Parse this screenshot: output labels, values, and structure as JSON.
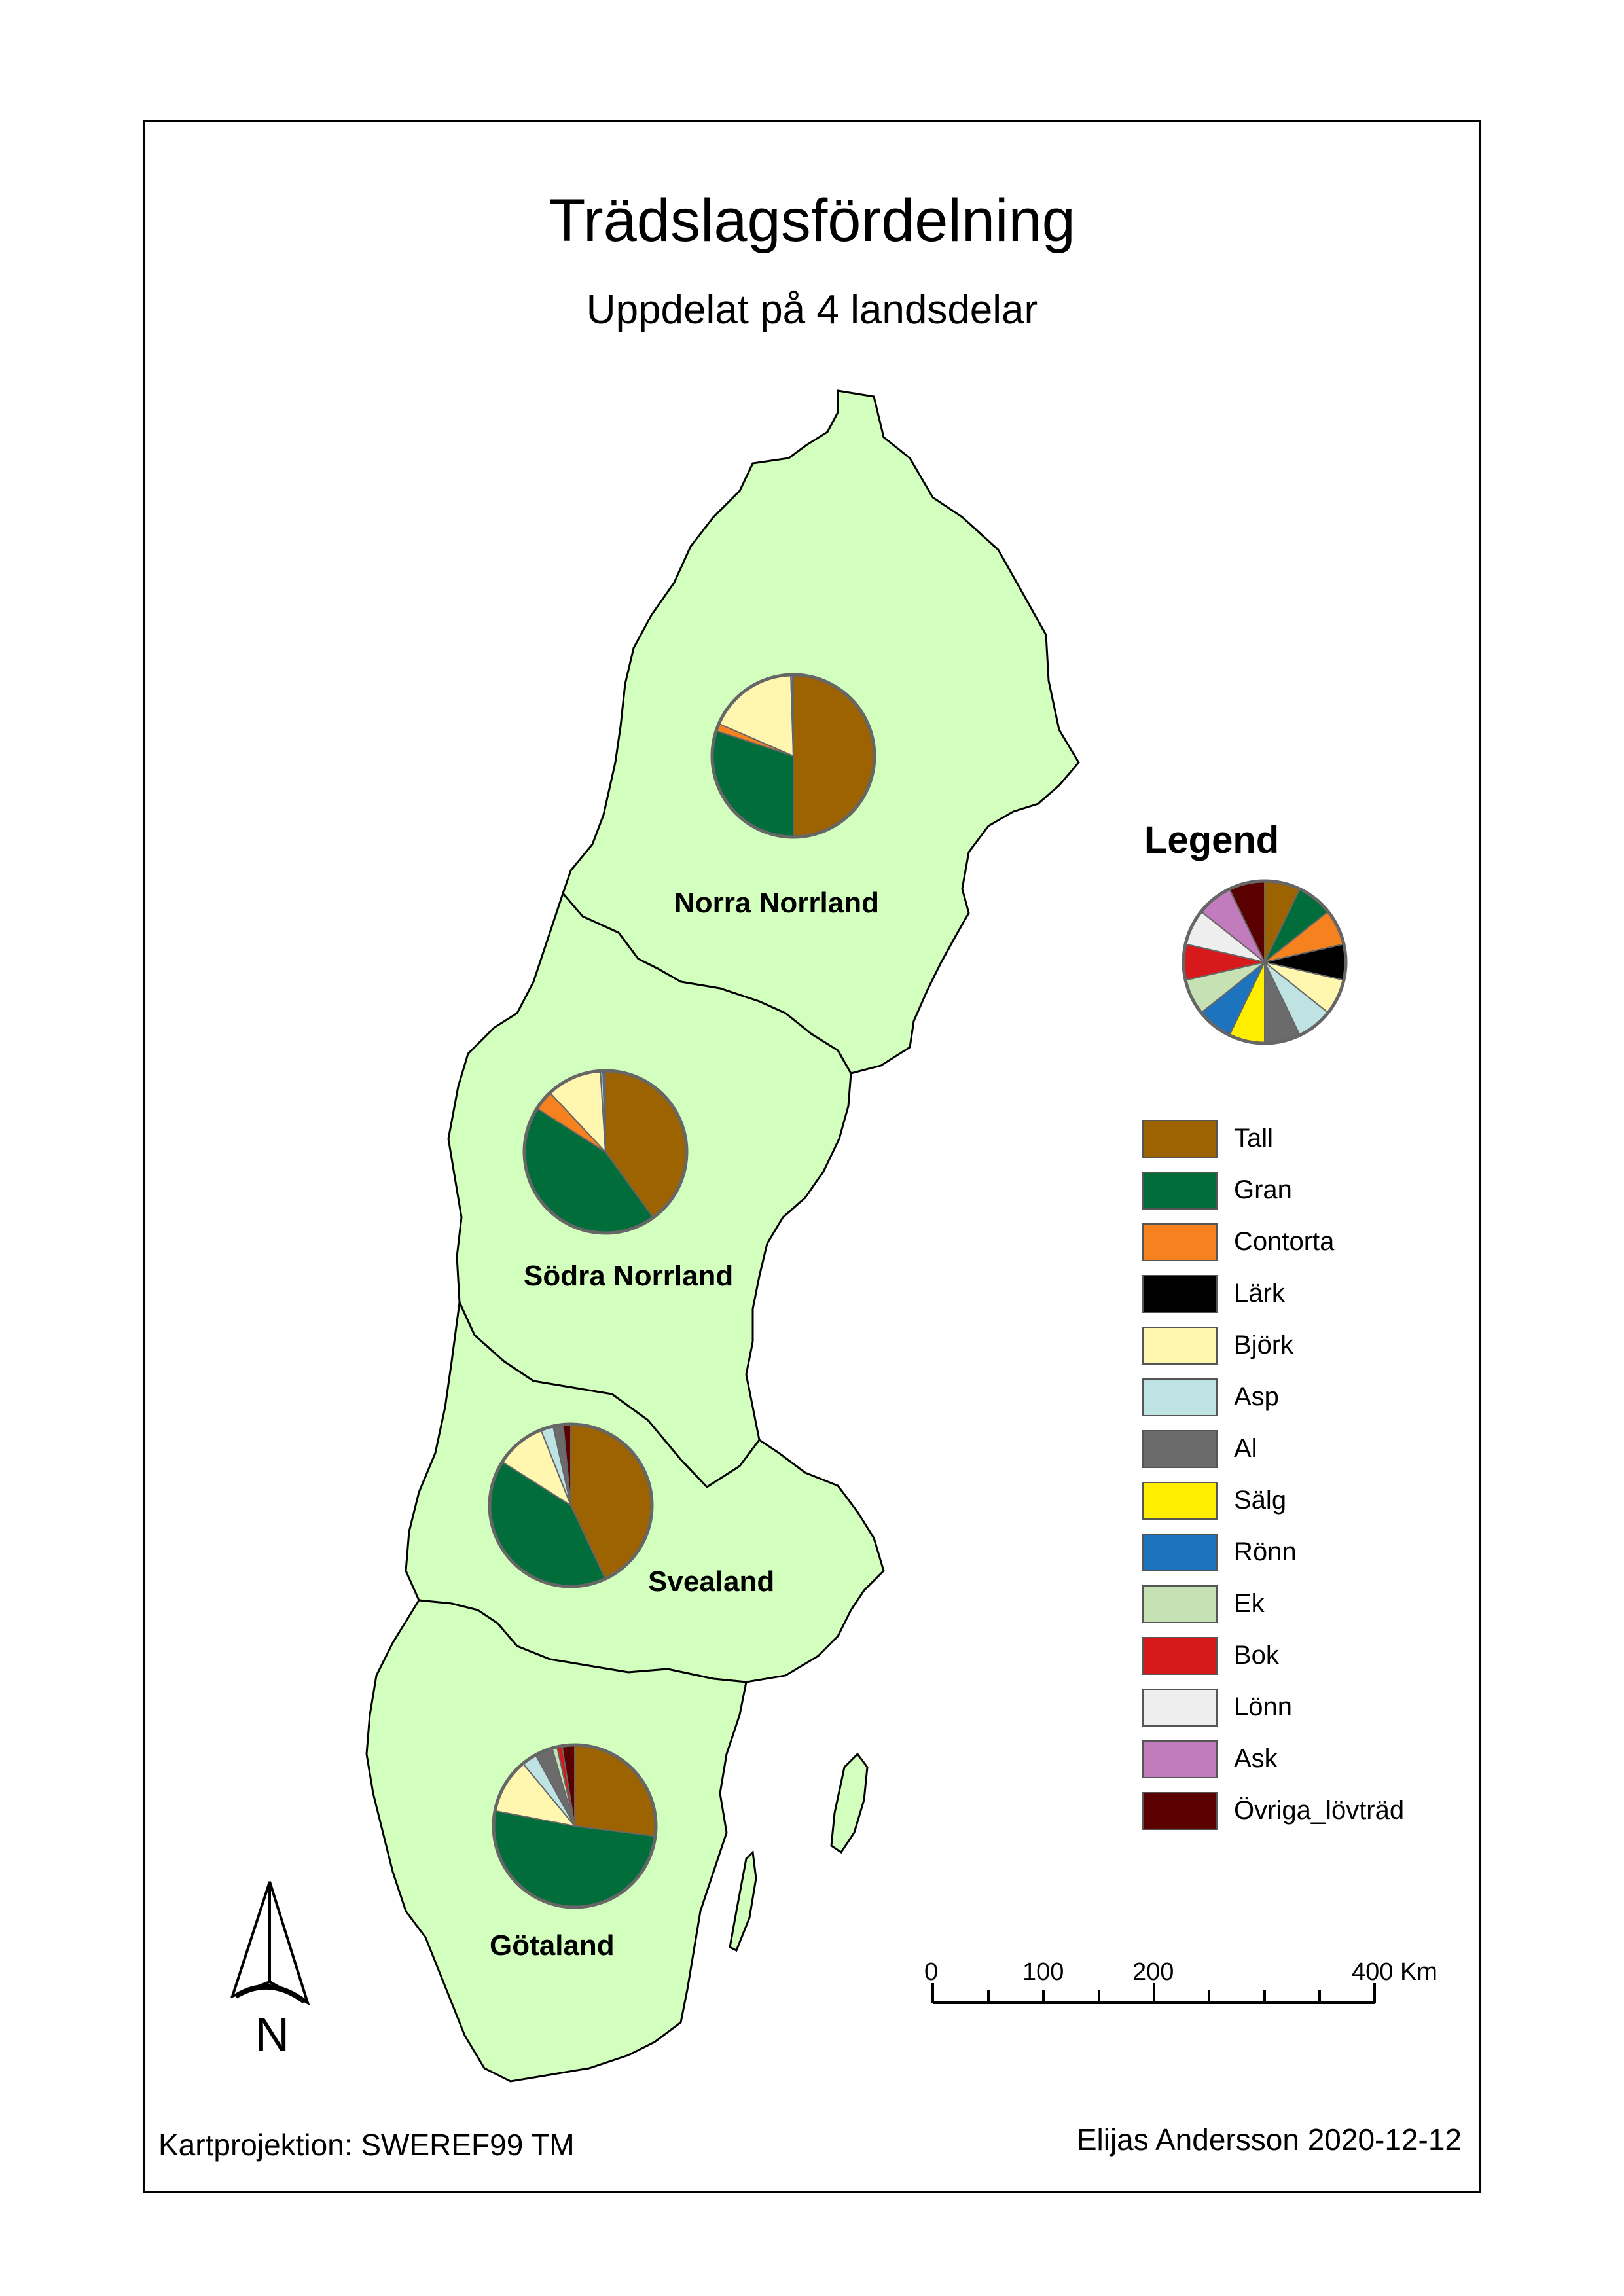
{
  "title": "Trädslagsfördelning",
  "subtitle": "Uppdelat på 4 landsdelar",
  "legend": {
    "title": "Legend",
    "items": [
      {
        "label": "Tall",
        "color": "#9c6300"
      },
      {
        "label": "Gran",
        "color": "#006d3a"
      },
      {
        "label": "Contorta",
        "color": "#f5821f"
      },
      {
        "label": "Lärk",
        "color": "#000000"
      },
      {
        "label": "Björk",
        "color": "#fff7b0"
      },
      {
        "label": "Asp",
        "color": "#bfe3e3"
      },
      {
        "label": "Al",
        "color": "#6b6b6b"
      },
      {
        "label": "Sälg",
        "color": "#ffee00"
      },
      {
        "label": "Rönn",
        "color": "#1e73be"
      },
      {
        "label": "Ek",
        "color": "#c6e2b4"
      },
      {
        "label": "Bok",
        "color": "#d7191c"
      },
      {
        "label": "Lönn",
        "color": "#eeeeee"
      },
      {
        "label": "Ask",
        "color": "#c27bbd"
      },
      {
        "label": "Övriga_lövträd",
        "color": "#5a0000"
      }
    ]
  },
  "regions": [
    {
      "name": "Norra Norrland",
      "shares": [
        50,
        30,
        1.5,
        0,
        18,
        0.3,
        0.2,
        0,
        0,
        0,
        0,
        0,
        0,
        0
      ]
    },
    {
      "name": "Södra Norrland",
      "shares": [
        40,
        44,
        4,
        0,
        11,
        0.5,
        0.5,
        0,
        0,
        0,
        0,
        0,
        0,
        0
      ]
    },
    {
      "name": "Svealand",
      "shares": [
        43,
        41,
        0,
        0,
        10,
        2.5,
        2,
        0,
        0,
        0,
        0,
        0,
        0,
        1.5
      ]
    },
    {
      "name": "Götaland",
      "shares": [
        27,
        51,
        0,
        0,
        11,
        3,
        3.5,
        0,
        0,
        1,
        1,
        0,
        0,
        2.5
      ]
    }
  ],
  "scale_bar": {
    "labels": [
      "0",
      "100",
      "200",
      "400 Km"
    ]
  },
  "north_arrow": {
    "label": "N",
    "icon": "north-arrow-icon"
  },
  "footer": {
    "projection": "Kartprojektion: SWEREF99 TM",
    "author_date": "Elijas Andersson 2020-12-12"
  },
  "colors": {
    "land": "#d3ffbe",
    "border": "#000000"
  }
}
